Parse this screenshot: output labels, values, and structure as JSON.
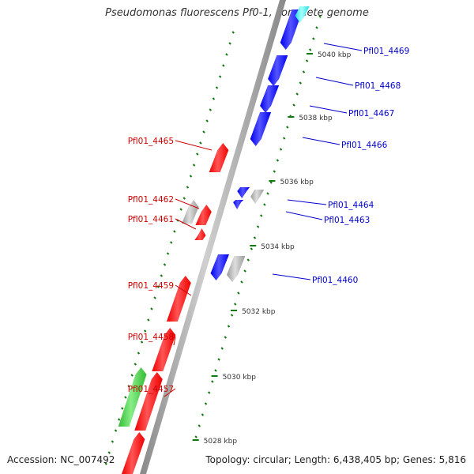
{
  "title": "Pseudomonas fluorescens Pf0-1, complete genome",
  "footer": {
    "accession": "Accession: NC_007492",
    "summary": "Topology: circular; Length: 6,438,405 bp; Genes: 5,816"
  },
  "colors": {
    "reverse_gene": "#ee0000",
    "forward_gene": "#0000ee",
    "grey_gene": "#9a9a9a",
    "green_gene": "#33bb33",
    "cyan_gene": "#22dddd",
    "backbone": "#888888",
    "tick": "#117711"
  },
  "scale_labels": [
    "5040 kbp",
    "5038 kbp",
    "5036 kbp",
    "5034 kbp",
    "5032 kbp",
    "5030 kbp",
    "5028 kbp"
  ],
  "genes_left": [
    {
      "label": "Pfl01_4465"
    },
    {
      "label": "Pfl01_4462"
    },
    {
      "label": "Pfl01_4461"
    },
    {
      "label": "Pfl01_4459"
    },
    {
      "label": "Pfl01_4458"
    },
    {
      "label": "Pfl01_4457"
    }
  ],
  "genes_right": [
    {
      "label": "Pfl01_4469"
    },
    {
      "label": "Pfl01_4468"
    },
    {
      "label": "Pfl01_4467"
    },
    {
      "label": "Pfl01_4466"
    },
    {
      "label": "Pfl01_4464"
    },
    {
      "label": "Pfl01_4463"
    },
    {
      "label": "Pfl01_4460"
    }
  ]
}
